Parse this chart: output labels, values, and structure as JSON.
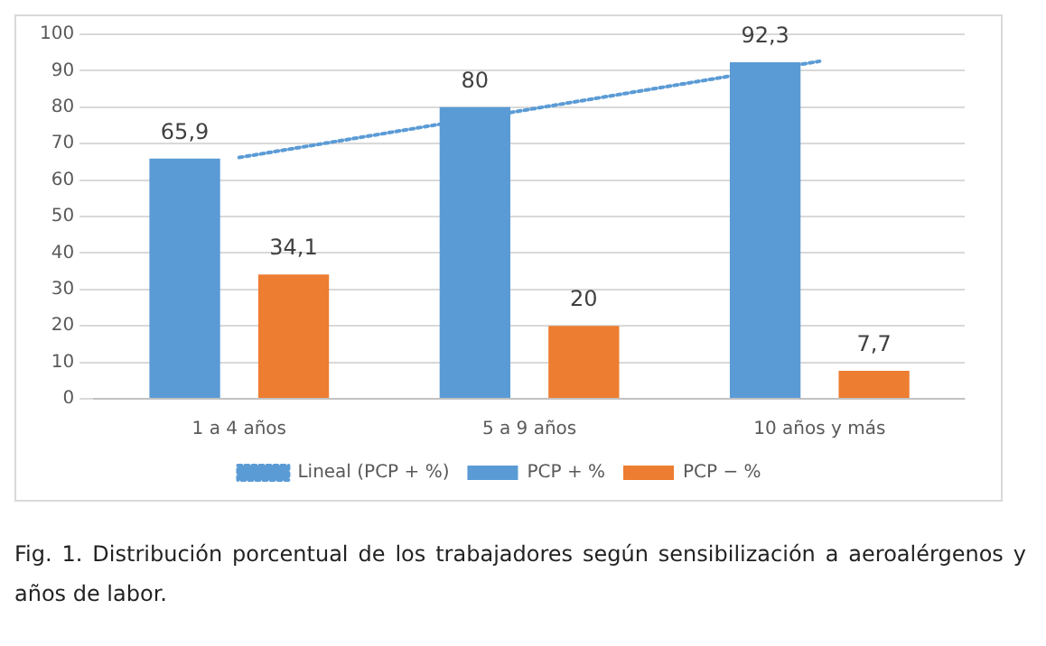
{
  "chart_data": {
    "type": "bar",
    "categories": [
      "1 a 4 años",
      "5 a 9 años",
      "10 años y más"
    ],
    "series": [
      {
        "name": "PCP + %",
        "color": "#5b9bd5",
        "values": [
          65.9,
          80,
          92.3
        ],
        "value_labels": [
          "65,9",
          "80",
          "92,3"
        ]
      },
      {
        "name": "PCP − %",
        "color": "#ed7d31",
        "values": [
          34.1,
          20,
          7.7
        ],
        "value_labels": [
          "34,1",
          "20",
          "7,7"
        ]
      },
      {
        "name": "Lineal (PCP + %)",
        "type": "line",
        "color": "#5b9bd5",
        "values": [
          66.2,
          79.4,
          92.6
        ],
        "line_style": "dotted",
        "marker": "none"
      }
    ],
    "ylim": [
      0,
      100
    ],
    "yticks": [
      0,
      10,
      20,
      30,
      40,
      50,
      60,
      70,
      80,
      90,
      100
    ],
    "grid": "y",
    "legend": "bottom",
    "annotations": [
      "Fig. 1.  Distribución porcentual de los trabajadores según sensibilización a aeroalérgenos y años de labor."
    ]
  }
}
